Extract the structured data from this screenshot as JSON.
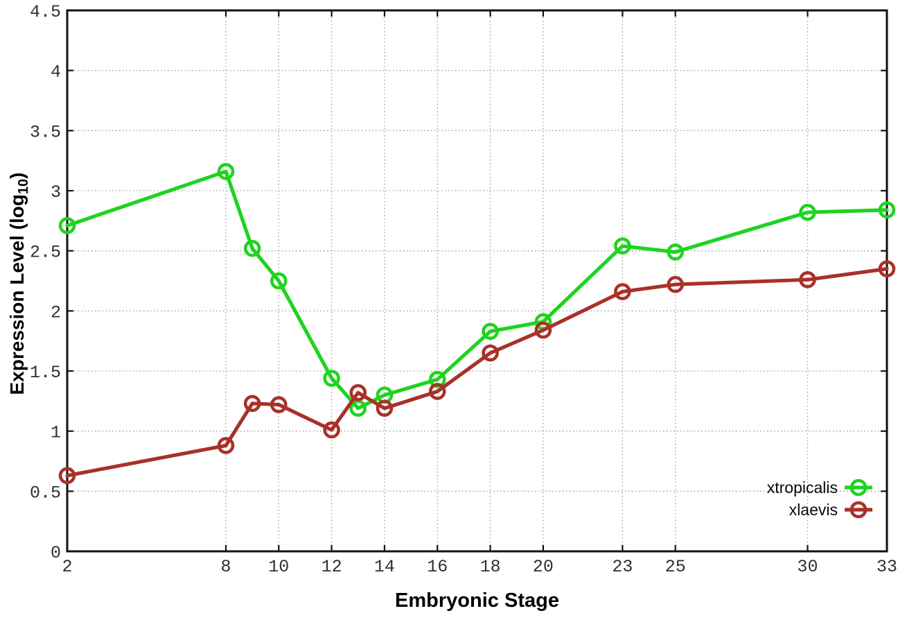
{
  "figure": {
    "xlabel": "Embryonic Stage",
    "ylabel_prefix": "Expression Level (log",
    "ylabel_sub": "10",
    "ylabel_suffix": ")"
  },
  "chart_data": {
    "type": "line",
    "title": "",
    "xlabel": "Embryonic Stage",
    "ylabel": "Expression Level (log10)",
    "x": [
      2,
      8,
      9,
      10,
      12,
      13,
      14,
      16,
      18,
      20,
      23,
      25,
      30,
      33
    ],
    "series": [
      {
        "name": "xtropicalis",
        "color": "#1fd31f",
        "values": [
          2.71,
          3.16,
          2.52,
          2.25,
          1.44,
          1.19,
          1.3,
          1.43,
          1.83,
          1.91,
          2.54,
          2.49,
          2.82,
          2.84
        ]
      },
      {
        "name": "xlaevis",
        "color": "#a93128",
        "values": [
          0.63,
          0.88,
          1.23,
          1.22,
          1.01,
          1.32,
          1.19,
          1.33,
          1.65,
          1.84,
          2.16,
          2.22,
          2.26,
          2.35
        ]
      }
    ],
    "xlim": [
      2,
      33
    ],
    "ylim": [
      0,
      4.5
    ],
    "xtick_labels": [
      "2",
      "8",
      "10",
      "12",
      "14",
      "16",
      "18",
      "20",
      "23",
      "25",
      "30",
      "33"
    ],
    "xtick_values": [
      2,
      8,
      10,
      12,
      14,
      16,
      18,
      20,
      23,
      25,
      30,
      33
    ],
    "ytick_labels": [
      "0",
      "0.5",
      "1",
      "1.5",
      "2",
      "2.5",
      "3",
      "3.5",
      "4",
      "4.5"
    ],
    "ytick_values": [
      0,
      0.5,
      1,
      1.5,
      2,
      2.5,
      3,
      3.5,
      4,
      4.5
    ],
    "grid": true,
    "legend_position": "inside-bottom-right",
    "marker": "open-circle",
    "style": {
      "border_color": "#111111",
      "grid_color": "#9a9a9a",
      "tick_label_color": "#303030"
    }
  }
}
